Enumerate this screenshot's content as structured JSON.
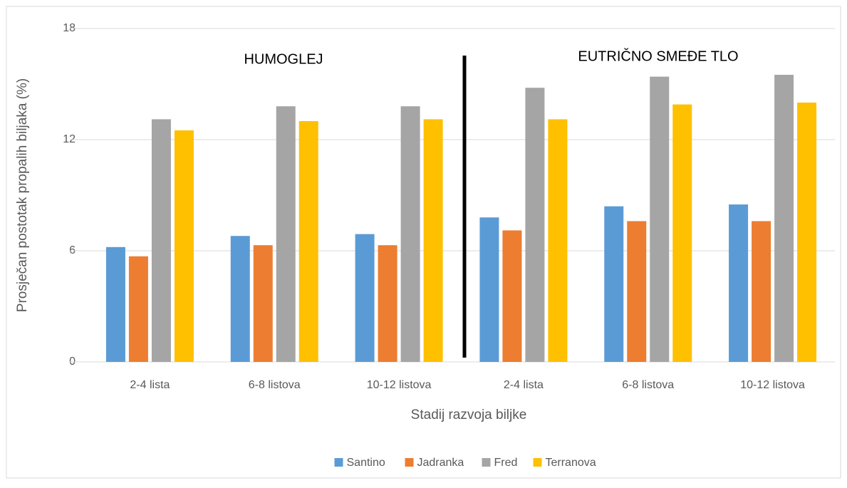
{
  "chart_data": {
    "type": "bar",
    "x_label": "Stadij razvoja biljke",
    "y_label": "Prosječan postotak propalih biljaka (%)",
    "annotations": [
      "HUMOGLEJ",
      "EUTRIČNO SMEĐE TLO"
    ],
    "categories": [
      "2-4 lista",
      "6-8 listova",
      "10-12 listova",
      "2-4 lista",
      "6-8 listova",
      "10-12 listova"
    ],
    "series": [
      {
        "name": "Santino",
        "color": "#5b9bd5",
        "values": [
          6.2,
          6.8,
          6.9,
          7.8,
          8.4,
          8.5
        ]
      },
      {
        "name": "Jadranka",
        "color": "#ed7d31",
        "values": [
          5.7,
          6.3,
          6.3,
          7.1,
          7.6,
          7.6
        ]
      },
      {
        "name": "Fred",
        "color": "#a5a5a5",
        "values": [
          13.1,
          13.8,
          13.8,
          14.8,
          15.4,
          15.5
        ]
      },
      {
        "name": "Terranova",
        "color": "#ffc000",
        "values": [
          12.5,
          13.0,
          13.1,
          13.1,
          13.9,
          14.0
        ]
      }
    ],
    "ylim": [
      0,
      18
    ],
    "yticks": [
      0,
      6,
      12,
      18
    ],
    "grid": true,
    "legend": "bottom"
  }
}
